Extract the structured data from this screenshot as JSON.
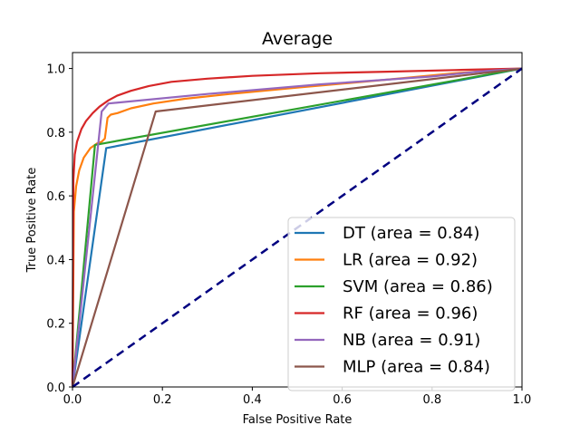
{
  "chart_data": {
    "type": "line",
    "title": "Average",
    "xlabel": "False Positive Rate",
    "ylabel": "True Positive Rate",
    "xlim": [
      0,
      1
    ],
    "ylim": [
      0,
      1.05
    ],
    "xticks": [
      "0.0",
      "0.2",
      "0.4",
      "0.6",
      "0.8",
      "1.0"
    ],
    "yticks": [
      "0.0",
      "0.2",
      "0.4",
      "0.6",
      "0.8",
      "1.0"
    ],
    "grid": false,
    "legend_position": "lower-right",
    "series": [
      {
        "name": "DT (area = 0.84)",
        "color": "#1f77b4",
        "x": [
          0,
          0.075,
          1
        ],
        "y": [
          0,
          0.75,
          1
        ]
      },
      {
        "name": "LR (area = 0.92)",
        "color": "#ff7f0e",
        "x": [
          0,
          0.003,
          0.008,
          0.015,
          0.025,
          0.04,
          0.055,
          0.065,
          0.072,
          0.078,
          0.085,
          0.1,
          0.13,
          0.18,
          0.25,
          0.35,
          0.5,
          0.7,
          0.85,
          1
        ],
        "y": [
          0,
          0.55,
          0.63,
          0.68,
          0.72,
          0.75,
          0.765,
          0.77,
          0.78,
          0.845,
          0.855,
          0.86,
          0.875,
          0.89,
          0.905,
          0.92,
          0.94,
          0.965,
          0.985,
          1
        ]
      },
      {
        "name": "SVM (area = 0.86)",
        "color": "#2ca02c",
        "x": [
          0,
          0.05,
          1
        ],
        "y": [
          0,
          0.76,
          1
        ]
      },
      {
        "name": "RF (area = 0.96)",
        "color": "#d62728",
        "x": [
          0,
          0.002,
          0.005,
          0.01,
          0.02,
          0.03,
          0.045,
          0.06,
          0.08,
          0.1,
          0.13,
          0.17,
          0.22,
          0.3,
          0.4,
          0.55,
          0.7,
          0.85,
          1
        ],
        "y": [
          0,
          0.65,
          0.73,
          0.77,
          0.81,
          0.835,
          0.86,
          0.88,
          0.9,
          0.915,
          0.93,
          0.945,
          0.958,
          0.968,
          0.977,
          0.985,
          0.99,
          0.995,
          1
        ]
      },
      {
        "name": "NB (area = 0.91)",
        "color": "#9467bd",
        "x": [
          0,
          0.065,
          0.08,
          0.3,
          0.55,
          0.8,
          0.9,
          1
        ],
        "y": [
          0,
          0.865,
          0.89,
          0.92,
          0.95,
          0.975,
          0.99,
          1
        ]
      },
      {
        "name": "MLP (area = 0.84)",
        "color": "#8c564b",
        "x": [
          0,
          0.185,
          1
        ],
        "y": [
          0,
          0.865,
          1
        ]
      }
    ],
    "reference_line": {
      "color": "#000080",
      "style": "dashed",
      "x": [
        0,
        1
      ],
      "y": [
        0,
        1
      ]
    }
  }
}
